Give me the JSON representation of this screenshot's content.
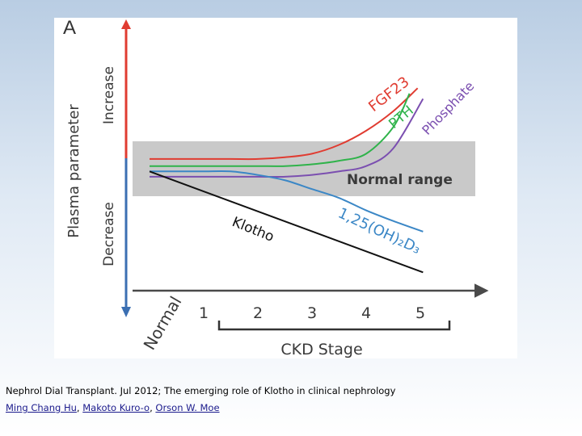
{
  "chart_data": {
    "type": "line",
    "panel_label": "A",
    "ylabel": "Plasma parameter",
    "y_direction_labels": {
      "up": "Increase",
      "down": "Decrease"
    },
    "xlabel": "CKD Stage",
    "x_origin_label": "Normal",
    "categories": [
      "Normal",
      "1",
      "2",
      "3",
      "4",
      "5"
    ],
    "x_tick_labels": [
      "1",
      "2",
      "3",
      "4",
      "5"
    ],
    "normal_range": {
      "label": "Normal range",
      "low": 46,
      "high": 77
    },
    "ylim": [
      0,
      100
    ],
    "series": [
      {
        "name": "FGF23",
        "color": "#e03c31",
        "x": [
          0,
          0.5,
          1,
          1.5,
          2,
          2.5,
          3,
          3.5,
          4,
          4.5,
          4.95
        ],
        "y": [
          67,
          67,
          67,
          67,
          67,
          68,
          70,
          75,
          83,
          94,
          107
        ]
      },
      {
        "name": "PTH",
        "color": "#2fb34a",
        "x": [
          0,
          0.5,
          1,
          1.5,
          2,
          2.5,
          3,
          3.5,
          4,
          4.5,
          4.8
        ],
        "y": [
          63,
          63,
          63,
          63,
          63,
          63,
          64,
          66,
          70,
          85,
          104
        ]
      },
      {
        "name": "Phosphate",
        "color": "#7b4fb0",
        "x": [
          0,
          0.5,
          1,
          1.5,
          2,
          2.5,
          3,
          3.5,
          4,
          4.5,
          5.05
        ],
        "y": [
          57,
          57,
          57,
          57,
          57,
          57,
          58,
          60,
          63,
          73,
          101
        ]
      },
      {
        "name": "1,25(OH)₂D₃",
        "color": "#3b87c6",
        "x": [
          0,
          0.5,
          1,
          1.5,
          2,
          2.5,
          3,
          3.5,
          4,
          4.5,
          5.05
        ],
        "y": [
          60,
          60,
          60,
          60,
          58,
          55,
          50,
          45,
          38,
          32,
          26
        ]
      },
      {
        "name": "Klotho",
        "color": "#111111",
        "x": [
          0,
          5.05
        ],
        "y": [
          60,
          3
        ]
      }
    ],
    "legend": "labels placed along curves",
    "grid": false
  },
  "caption": {
    "citation": "Nephrol Dial Transplant. Jul 2012; The emerging role of Klotho in clinical nephrology",
    "authors": [
      "Ming Chang Hu",
      "Makoto Kuro-o",
      "Orson W. Moe"
    ],
    "separator": ", "
  }
}
